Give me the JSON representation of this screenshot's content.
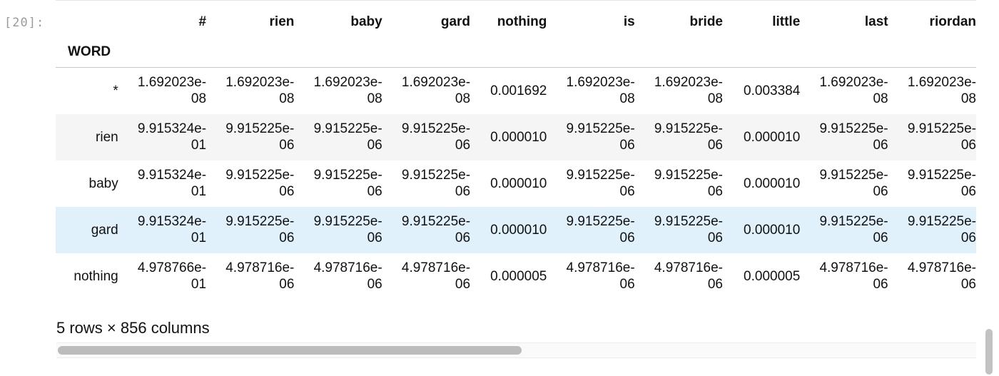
{
  "prompt": "[20]:",
  "table": {
    "index_name": "WORD",
    "columns": [
      "#",
      "rien",
      "baby",
      "gard",
      "nothing",
      "is",
      "bride",
      "little",
      "last",
      "riordan"
    ],
    "rows": [
      {
        "index": "*",
        "cells": [
          [
            "1.692023e-",
            "08"
          ],
          [
            "1.692023e-",
            "08"
          ],
          [
            "1.692023e-",
            "08"
          ],
          [
            "1.692023e-",
            "08"
          ],
          [
            "0.001692"
          ],
          [
            "1.692023e-",
            "08"
          ],
          [
            "1.692023e-",
            "08"
          ],
          [
            "0.003384"
          ],
          [
            "1.692023e-",
            "08"
          ],
          [
            "1.692023e-",
            "08"
          ]
        ]
      },
      {
        "index": "rien",
        "cells": [
          [
            "9.915324e-",
            "01"
          ],
          [
            "9.915225e-",
            "06"
          ],
          [
            "9.915225e-",
            "06"
          ],
          [
            "9.915225e-",
            "06"
          ],
          [
            "0.000010"
          ],
          [
            "9.915225e-",
            "06"
          ],
          [
            "9.915225e-",
            "06"
          ],
          [
            "0.000010"
          ],
          [
            "9.915225e-",
            "06"
          ],
          [
            "9.915225e-",
            "06"
          ]
        ]
      },
      {
        "index": "baby",
        "cells": [
          [
            "9.915324e-",
            "01"
          ],
          [
            "9.915225e-",
            "06"
          ],
          [
            "9.915225e-",
            "06"
          ],
          [
            "9.915225e-",
            "06"
          ],
          [
            "0.000010"
          ],
          [
            "9.915225e-",
            "06"
          ],
          [
            "9.915225e-",
            "06"
          ],
          [
            "0.000010"
          ],
          [
            "9.915225e-",
            "06"
          ],
          [
            "9.915225e-",
            "06"
          ]
        ]
      },
      {
        "index": "gard",
        "cells": [
          [
            "9.915324e-",
            "01"
          ],
          [
            "9.915225e-",
            "06"
          ],
          [
            "9.915225e-",
            "06"
          ],
          [
            "9.915225e-",
            "06"
          ],
          [
            "0.000010"
          ],
          [
            "9.915225e-",
            "06"
          ],
          [
            "9.915225e-",
            "06"
          ],
          [
            "0.000010"
          ],
          [
            "9.915225e-",
            "06"
          ],
          [
            "9.915225e-",
            "06"
          ]
        ]
      },
      {
        "index": "nothing",
        "cells": [
          [
            "4.978766e-",
            "01"
          ],
          [
            "4.978716e-",
            "06"
          ],
          [
            "4.978716e-",
            "06"
          ],
          [
            "4.978716e-",
            "06"
          ],
          [
            "0.000005"
          ],
          [
            "4.978716e-",
            "06"
          ],
          [
            "4.978716e-",
            "06"
          ],
          [
            "0.000005"
          ],
          [
            "4.978716e-",
            "06"
          ],
          [
            "4.978716e-",
            "06"
          ]
        ]
      }
    ]
  },
  "footer": "5 rows × 856 columns",
  "colors": {
    "row_alt": "#f5f5f5",
    "row_hover": "#e1f1fb",
    "scrollbar_thumb": "#bcbcbc"
  }
}
